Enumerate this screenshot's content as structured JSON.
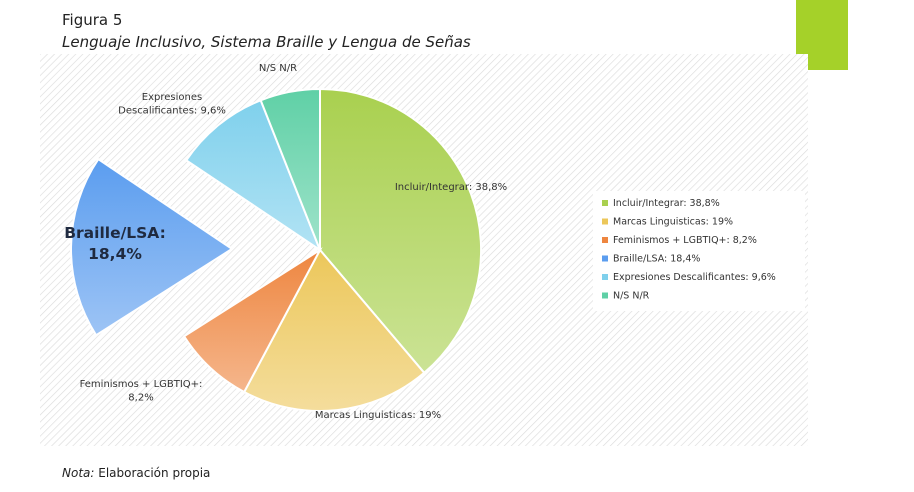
{
  "figure": {
    "label": "Figura 5",
    "title": "Lenguaje Inclusivo, Sistema Braille y Lengua de Señas",
    "note_prefix": "Nota:",
    "note_text": " Elaboración propia",
    "accent_color": "#a5d129"
  },
  "chart_data": {
    "type": "pie",
    "title": "",
    "legend_position": "right",
    "exploded": "Braille/LSA",
    "series": [
      {
        "label": "Incluir/Integrar",
        "value": 38.8,
        "display": "38,8%",
        "color": "#a9d04f",
        "data_label": "Incluir/Integrar: 38,8%",
        "legend": "Incluir/Integrar: 38,8%"
      },
      {
        "label": "Marcas Linguisticas",
        "value": 19,
        "display": "19%",
        "color": "#ecc75a",
        "data_label": "Marcas Linguisticas: 19%",
        "legend": "Marcas Linguisticas: 19%"
      },
      {
        "label": "Feminismos + LGBTIQ+",
        "value": 8.2,
        "display": "8,2%",
        "color": "#ee8640",
        "data_label_line1": "Feminismos + LGBTIQ+:",
        "data_label_line2": "8,2%",
        "legend": "Feminismos + LGBTIQ+: 8,2%"
      },
      {
        "label": "Braille/LSA",
        "value": 18.4,
        "display": "18,4%",
        "color": "#5b9def",
        "data_label_line1": "Braille/LSA:",
        "data_label_line2": "18,4%",
        "legend": "Braille/LSA: 18,4%"
      },
      {
        "label": "Expresiones Descalificantes",
        "value": 9.6,
        "display": "9,6%",
        "color": "#7fd0ec",
        "data_label_line1": "Expresiones",
        "data_label_line2": "Descalificantes: 9,6%",
        "legend": "Expresiones Descalificantes: 9,6%"
      },
      {
        "label": "N/S N/R",
        "value": 6,
        "display": "",
        "color": "#5fd0a6",
        "data_label": "N/S N/R",
        "legend": "N/S N/R"
      }
    ]
  }
}
